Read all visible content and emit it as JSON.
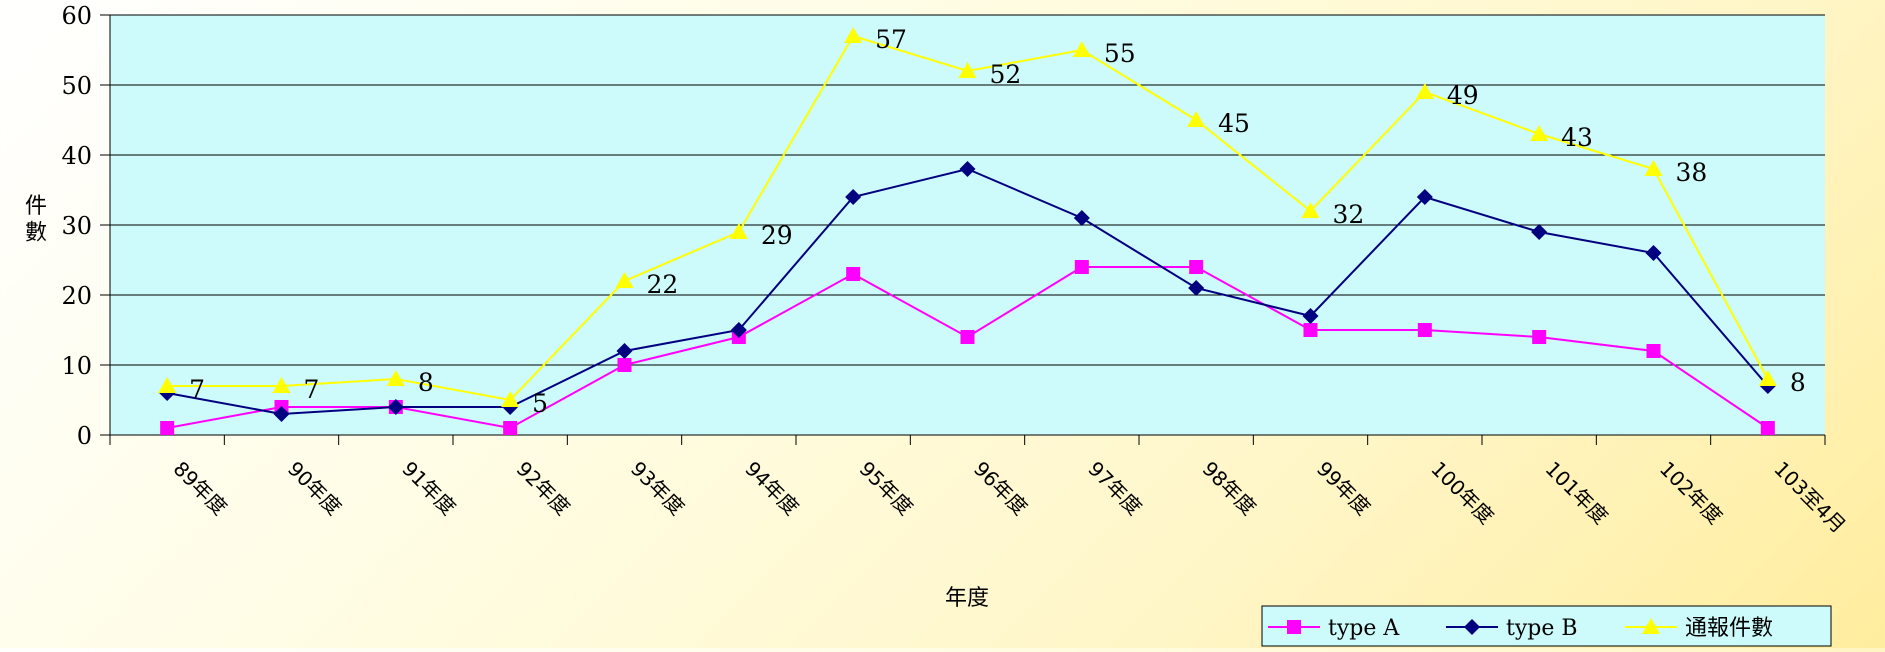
{
  "chart_data": {
    "type": "line",
    "xlabel": "年度",
    "ylabel": "件數",
    "categories": [
      "89年度",
      "90年度",
      "91年度",
      "92年度",
      "93年度",
      "94年度",
      "95年度",
      "96年度",
      "97年度",
      "98年度",
      "99年度",
      "100年度",
      "101年度",
      "102年度",
      "103至4月"
    ],
    "ylim": [
      0,
      60
    ],
    "yticks": [
      0,
      10,
      20,
      30,
      40,
      50,
      60
    ],
    "grid": true,
    "legend_position": "bottom-right",
    "series": [
      {
        "name": "type A",
        "color": "#ff00ff",
        "marker": "square",
        "values": [
          1,
          4,
          4,
          1,
          10,
          14,
          23,
          14,
          24,
          24,
          15,
          15,
          14,
          12,
          1
        ]
      },
      {
        "name": "type B",
        "color": "#000080",
        "marker": "diamond",
        "values": [
          6,
          3,
          4,
          4,
          12,
          15,
          34,
          38,
          31,
          21,
          17,
          34,
          29,
          26,
          7
        ]
      },
      {
        "name": "通報件數",
        "color": "#ffff00",
        "marker": "triangle",
        "values": [
          7,
          7,
          8,
          5,
          22,
          29,
          57,
          52,
          55,
          45,
          32,
          49,
          43,
          38,
          8
        ],
        "data_labels": true
      }
    ]
  }
}
